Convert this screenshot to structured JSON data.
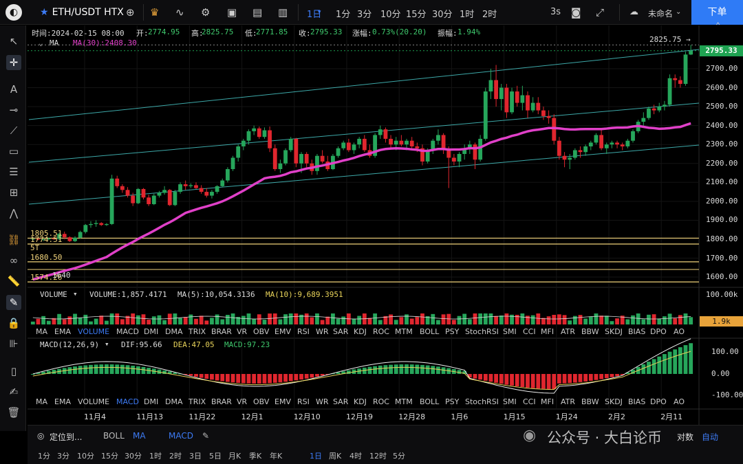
{
  "topbar": {
    "symbol": "ETH/USDT HTX",
    "timeframes": [
      "1日",
      "1分",
      "3分",
      "10分",
      "15分",
      "30分",
      "1时",
      "2时"
    ],
    "active_timeframe": "1日",
    "refresh": "3s",
    "layout_name": "未命名",
    "order_button": "下单"
  },
  "info": {
    "time": "时间:2024-02-15 08:00",
    "open_label": "开:",
    "open": "2774.95",
    "high_label": "高:",
    "high": "2825.75",
    "low_label": "低:",
    "low": "2771.85",
    "close_label": "收:",
    "close": "2795.33",
    "change_label": "涨幅:",
    "change": "0.73%(20.20)",
    "amp_label": "振幅:",
    "amp": "1.94%",
    "ma_label": "MA",
    "ma30": "MA(30):2408.30"
  },
  "price_axis": {
    "ticks": [
      "2700.00",
      "2600.00",
      "2500.00",
      "2400.00",
      "2300.00",
      "2200.00",
      "2100.00",
      "2000.00",
      "1900.00",
      "1800.00",
      "1700.00",
      "1600.00"
    ],
    "last_price": "2795.33",
    "high_marker": "2825.75 →"
  },
  "levels": [
    {
      "label": "1805.51",
      "value": 1805.51
    },
    {
      "label": "1774.51",
      "value": 1774.51
    },
    {
      "label": "1680.50",
      "value": 1680.5
    },
    {
      "label": "1574.26",
      "value": 1574.26
    }
  ],
  "level_extra_labels": [
    "5T",
    "1640"
  ],
  "volume": {
    "title": "VOLUME",
    "value": "VOLUME:1,857.4171",
    "ma5": "MA(5):10,054.3136",
    "ma10": "MA(10):9,689.3951",
    "axis_top": "100.00k",
    "last_label": "1.9k",
    "tabs": [
      "MA",
      "EMA",
      "VOLUME",
      "MACD",
      "DMI",
      "DMA",
      "TRIX",
      "BRAR",
      "VR",
      "OBV",
      "EMV",
      "RSI",
      "WR",
      "SAR",
      "KDJ",
      "ROC",
      "MTM",
      "BOLL",
      "PSY",
      "StochRSI",
      "SMI",
      "CCI",
      "MFI",
      "ATR",
      "BBW",
      "SKDJ",
      "BIAS",
      "DPO",
      "AO"
    ],
    "active_tab": "VOLUME"
  },
  "macd": {
    "title": "MACD(12,26,9)",
    "dif": "DIF:95.66",
    "dea": "DEA:47.05",
    "macd": "MACD:97.23",
    "axis": [
      "100.00",
      "0.00",
      "-100.00"
    ],
    "tabs": [
      "MA",
      "EMA",
      "VOLUME",
      "MACD",
      "DMI",
      "DMA",
      "TRIX",
      "BRAR",
      "VR",
      "OBV",
      "EMV",
      "RSI",
      "WR",
      "SAR",
      "KDJ",
      "ROC",
      "MTM",
      "BOLL",
      "PSY",
      "StochRSI",
      "SMI",
      "CCI",
      "MFI",
      "ATR",
      "BBW",
      "SKDJ",
      "BIAS",
      "DPO",
      "AO"
    ],
    "active_tab": "MACD"
  },
  "time_axis": [
    "11月4",
    "11月13",
    "11月22",
    "12月1",
    "12月10",
    "12月19",
    "12月28",
    "1月6",
    "1月15",
    "1月24",
    "2月2",
    "2月11"
  ],
  "bottom": {
    "locate": "定位到...",
    "main_indicators": [
      "BOLL",
      "MA"
    ],
    "active_main": "MA",
    "sub_indicator": "MACD",
    "watermark": "公众号 · 大白论币",
    "log_label": "对数",
    "auto_label": "自动",
    "periods": [
      "1分",
      "3分",
      "10分",
      "15分",
      "30分",
      "1时",
      "2时",
      "3日",
      "5日",
      "月K",
      "季K",
      "年K",
      "1日",
      "周K",
      "4时",
      "12时",
      "5分"
    ],
    "active_period": "1日"
  },
  "colors": {
    "up": "#26a65b",
    "down": "#e0262e",
    "ma": "#e040c8",
    "channel": "#4dd4d4",
    "level": "#f0d27a",
    "active": "#3d7bf5"
  },
  "chart_data": {
    "type": "candlestick",
    "symbol": "ETH/USDT",
    "interval": "1d",
    "ylim": [
      1550,
      2850
    ],
    "ohlc": [
      [
        1800,
        1805,
        1790,
        1802
      ],
      [
        1802,
        1807,
        1795,
        1798
      ],
      [
        1798,
        1803,
        1790,
        1800
      ],
      [
        1800,
        1808,
        1795,
        1804
      ],
      [
        1804,
        1810,
        1797,
        1801
      ],
      [
        1801,
        1835,
        1795,
        1828
      ],
      [
        1828,
        1840,
        1800,
        1810
      ],
      [
        1810,
        1815,
        1785,
        1790
      ],
      [
        1790,
        1815,
        1785,
        1808
      ],
      [
        1808,
        1845,
        1803,
        1838
      ],
      [
        1838,
        1880,
        1830,
        1875
      ],
      [
        1875,
        1895,
        1860,
        1880
      ],
      [
        1880,
        1900,
        1865,
        1885
      ],
      [
        1885,
        1890,
        1870,
        1875
      ],
      [
        1875,
        1885,
        1870,
        1880
      ],
      [
        1880,
        2140,
        1875,
        2120
      ],
      [
        2120,
        2135,
        2070,
        2080
      ],
      [
        2080,
        2090,
        2045,
        2060
      ],
      [
        2060,
        2075,
        2020,
        2030
      ],
      [
        2030,
        2045,
        1975,
        1990
      ],
      [
        1990,
        2070,
        1985,
        2065
      ],
      [
        2065,
        2070,
        2010,
        2020
      ],
      [
        2020,
        2035,
        1975,
        1985
      ],
      [
        1985,
        2040,
        1980,
        2030
      ],
      [
        2030,
        2055,
        2020,
        2045
      ],
      [
        2045,
        2080,
        2035,
        2060
      ],
      [
        2060,
        2065,
        1975,
        1980
      ],
      [
        1980,
        2060,
        1975,
        2050
      ],
      [
        2050,
        2100,
        2040,
        2090
      ],
      [
        2090,
        2110,
        2060,
        2080
      ],
      [
        2080,
        2095,
        2070,
        2085
      ],
      [
        2085,
        2100,
        2065,
        2070
      ],
      [
        2070,
        2085,
        2040,
        2050
      ],
      [
        2050,
        2070,
        2020,
        2030
      ],
      [
        2030,
        2060,
        2015,
        2050
      ],
      [
        2050,
        2085,
        2040,
        2080
      ],
      [
        2080,
        2120,
        2075,
        2110
      ],
      [
        2110,
        2180,
        2100,
        2170
      ],
      [
        2170,
        2240,
        2160,
        2230
      ],
      [
        2230,
        2300,
        2210,
        2290
      ],
      [
        2290,
        2330,
        2270,
        2320
      ],
      [
        2320,
        2380,
        2300,
        2370
      ],
      [
        2370,
        2400,
        2350,
        2385
      ],
      [
        2385,
        2395,
        2330,
        2340
      ],
      [
        2340,
        2390,
        2330,
        2375
      ],
      [
        2375,
        2395,
        2260,
        2280
      ],
      [
        2280,
        2300,
        2160,
        2170
      ],
      [
        2170,
        2220,
        2150,
        2200
      ],
      [
        2200,
        2280,
        2190,
        2270
      ],
      [
        2270,
        2340,
        2260,
        2330
      ],
      [
        2330,
        2335,
        2180,
        2200
      ],
      [
        2200,
        2260,
        2150,
        2250
      ],
      [
        2250,
        2260,
        2180,
        2200
      ],
      [
        2200,
        2220,
        2140,
        2160
      ],
      [
        2160,
        2250,
        2140,
        2240
      ],
      [
        2240,
        2270,
        2200,
        2210
      ],
      [
        2210,
        2240,
        2160,
        2170
      ],
      [
        2170,
        2250,
        2165,
        2240
      ],
      [
        2240,
        2290,
        2230,
        2280
      ],
      [
        2280,
        2320,
        2270,
        2310
      ],
      [
        2310,
        2330,
        2260,
        2270
      ],
      [
        2270,
        2310,
        2250,
        2300
      ],
      [
        2300,
        2340,
        2280,
        2330
      ],
      [
        2330,
        2350,
        2260,
        2270
      ],
      [
        2270,
        2300,
        2230,
        2240
      ],
      [
        2240,
        2360,
        2230,
        2350
      ],
      [
        2350,
        2400,
        2330,
        2380
      ],
      [
        2380,
        2390,
        2310,
        2330
      ],
      [
        2330,
        2350,
        2280,
        2300
      ],
      [
        2300,
        2340,
        2270,
        2320
      ],
      [
        2320,
        2350,
        2290,
        2300
      ],
      [
        2300,
        2330,
        2270,
        2320
      ],
      [
        2320,
        2340,
        2280,
        2290
      ],
      [
        2290,
        2310,
        2260,
        2280
      ],
      [
        2280,
        2300,
        2190,
        2210
      ],
      [
        2210,
        2280,
        2200,
        2270
      ],
      [
        2270,
        2330,
        2250,
        2320
      ],
      [
        2320,
        2380,
        2300,
        2350
      ],
      [
        2350,
        2360,
        2250,
        2270
      ],
      [
        2270,
        2290,
        2070,
        2230
      ],
      [
        2230,
        2250,
        2190,
        2210
      ],
      [
        2210,
        2260,
        2180,
        2250
      ],
      [
        2250,
        2300,
        2220,
        2280
      ],
      [
        2280,
        2320,
        2250,
        2300
      ],
      [
        2300,
        2310,
        2170,
        2220
      ],
      [
        2220,
        2350,
        2210,
        2330
      ],
      [
        2330,
        2600,
        2320,
        2580
      ],
      [
        2580,
        2700,
        2540,
        2640
      ],
      [
        2640,
        2720,
        2500,
        2540
      ],
      [
        2540,
        2620,
        2480,
        2600
      ],
      [
        2600,
        2620,
        2440,
        2470
      ],
      [
        2470,
        2600,
        2460,
        2580
      ],
      [
        2580,
        2610,
        2500,
        2520
      ],
      [
        2520,
        2610,
        2480,
        2560
      ],
      [
        2560,
        2580,
        2440,
        2480
      ],
      [
        2480,
        2550,
        2470,
        2520
      ],
      [
        2520,
        2550,
        2460,
        2480
      ],
      [
        2480,
        2500,
        2430,
        2450
      ],
      [
        2450,
        2480,
        2410,
        2440
      ],
      [
        2440,
        2460,
        2300,
        2320
      ],
      [
        2320,
        2340,
        2220,
        2240
      ],
      [
        2240,
        2260,
        2180,
        2220
      ],
      [
        2220,
        2250,
        2170,
        2230
      ],
      [
        2230,
        2280,
        2220,
        2270
      ],
      [
        2270,
        2290,
        2230,
        2260
      ],
      [
        2260,
        2300,
        2240,
        2290
      ],
      [
        2290,
        2320,
        2270,
        2310
      ],
      [
        2310,
        2360,
        2300,
        2350
      ],
      [
        2350,
        2380,
        2270,
        2280
      ],
      [
        2280,
        2310,
        2250,
        2300
      ],
      [
        2300,
        2320,
        2280,
        2310
      ],
      [
        2310,
        2320,
        2280,
        2300
      ],
      [
        2300,
        2310,
        2270,
        2290
      ],
      [
        2290,
        2330,
        2280,
        2320
      ],
      [
        2320,
        2380,
        2310,
        2370
      ],
      [
        2370,
        2430,
        2360,
        2420
      ],
      [
        2420,
        2470,
        2400,
        2440
      ],
      [
        2440,
        2500,
        2430,
        2490
      ],
      [
        2490,
        2510,
        2460,
        2480
      ],
      [
        2480,
        2520,
        2470,
        2500
      ],
      [
        2500,
        2530,
        2480,
        2510
      ],
      [
        2510,
        2670,
        2500,
        2650
      ],
      [
        2650,
        2670,
        2600,
        2640
      ],
      [
        2640,
        2660,
        2600,
        2620
      ],
      [
        2620,
        2790,
        2610,
        2775
      ],
      [
        2775,
        2826,
        2772,
        2795
      ]
    ]
  }
}
